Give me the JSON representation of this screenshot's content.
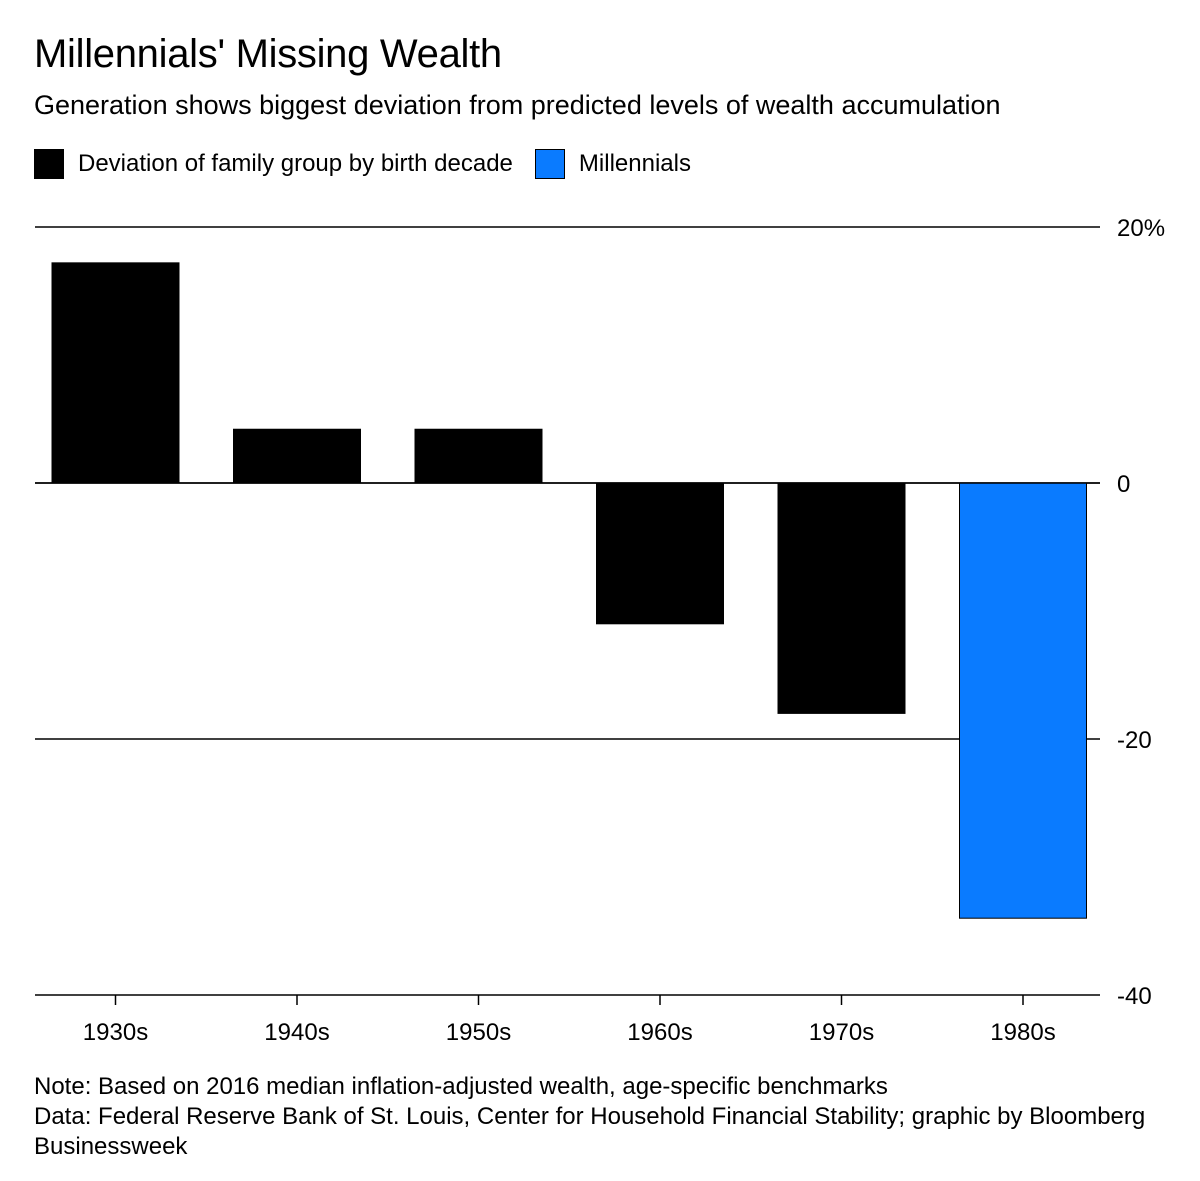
{
  "title": "Millennials' Missing Wealth",
  "subtitle": "Generation shows biggest deviation from predicted levels of wealth accumulation",
  "legend": [
    {
      "label": "Deviation of family group by birth decade",
      "color": "#000000"
    },
    {
      "label": "Millennials",
      "color": "#0A7BFF"
    }
  ],
  "notes": {
    "note": "Note: Based on 2016 median inflation-adjusted wealth, age-specific benchmarks",
    "source": "Data: Federal Reserve Bank of St. Louis, Center for Household Financial Stability; graphic by Bloomberg Businessweek"
  },
  "chart_data": {
    "type": "bar",
    "title": "Millennials' Missing Wealth",
    "subtitle": "Generation shows biggest deviation from predicted levels of wealth accumulation",
    "categories": [
      "1930s",
      "1940s",
      "1950s",
      "1960s",
      "1970s",
      "1980s"
    ],
    "values": [
      17.2,
      4.2,
      4.2,
      -11,
      -18,
      -34
    ],
    "colors": [
      "#000000",
      "#000000",
      "#000000",
      "#000000",
      "#000000",
      "#0A7BFF"
    ],
    "series_of_category": [
      "Deviation of family group by birth decade",
      "Deviation of family group by birth decade",
      "Deviation of family group by birth decade",
      "Deviation of family group by birth decade",
      "Deviation of family group by birth decade",
      "Millennials"
    ],
    "ylim": [
      -40,
      20
    ],
    "yticks": [
      20,
      0,
      -20,
      -40
    ],
    "ytick_labels": [
      "20%",
      "0",
      "-20",
      "-40"
    ],
    "y_axis_side": "right",
    "grid": true,
    "legend_position": "top-left",
    "xlabel": "",
    "ylabel": ""
  }
}
